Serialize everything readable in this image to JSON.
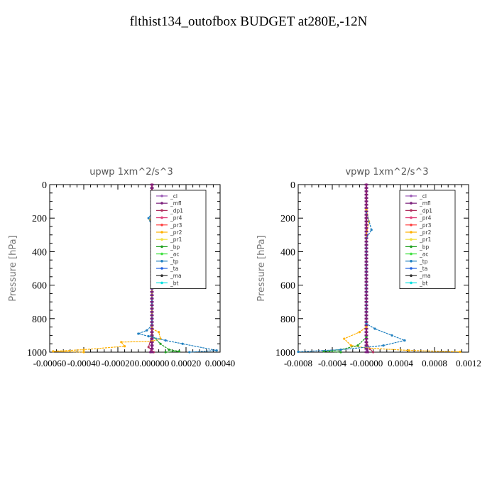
{
  "title": "flthist134_outofbox  BUDGET at280E,-12N",
  "legend_entries": [
    "_cl",
    "_mfl",
    "_dp1",
    "_pr4",
    "_pr3",
    "_pr2",
    "_pr1",
    "_bp",
    "_ac",
    "_tp",
    "_ta",
    "_ma",
    "_bt"
  ],
  "legend_colors": [
    "#9b59b6",
    "#7b1f7b",
    "#b03060",
    "#e0407a",
    "#ff4040",
    "#ffb000",
    "#f0e040",
    "#20a020",
    "#40e040",
    "#2080c0",
    "#2060e0",
    "#303030",
    "#00e0e0"
  ],
  "chart_data": [
    {
      "type": "line",
      "title": "upwp   1xm^2/s^3",
      "ylabel": "Pressure [hPa]",
      "ylim": [
        1000,
        0
      ],
      "xlim": [
        -0.0006,
        0.0004
      ],
      "y_ticks": [
        0,
        200,
        400,
        600,
        800,
        1000
      ],
      "y_tick_labels": [
        "0",
        "200",
        "400",
        "600",
        "800",
        "1000"
      ],
      "x_tick_labels": [
        "-0.00060",
        "-0.00040",
        "-0.00020",
        "0.000000",
        "0.00020",
        "0.00040"
      ],
      "legend_position": "top-right",
      "series": [
        {
          "name": "_cl",
          "color": "#9b59b6",
          "points": [
            [
              0.0,
              0
            ],
            [
              0.0,
              500
            ],
            [
              0.0,
              1000
            ]
          ]
        },
        {
          "name": "_mfl",
          "color": "#7b1f7b",
          "points": [
            [
              0.0,
              0
            ],
            [
              0.0,
              980
            ],
            [
              -1e-05,
              1000
            ]
          ]
        },
        {
          "name": "_dp1",
          "color": "#b03060",
          "points": [
            [
              0.0,
              0
            ],
            [
              0.0,
              900
            ],
            [
              -2e-05,
              970
            ],
            [
              1e-05,
              1000
            ]
          ]
        },
        {
          "name": "_pr2",
          "color": "#ffb000",
          "points": [
            [
              0.0,
              170
            ],
            [
              -1e-05,
              210
            ],
            [
              0.0,
              250
            ],
            [
              0.0,
              860
            ],
            [
              4e-05,
              880
            ],
            [
              5e-05,
              920
            ],
            [
              0.0,
              935
            ],
            [
              -0.00018,
              940
            ],
            [
              -0.00016,
              965
            ],
            [
              -0.0004,
              985
            ],
            [
              -0.00058,
              995
            ],
            [
              -0.0004,
              1000
            ]
          ]
        },
        {
          "name": "_bp",
          "color": "#20a020",
          "points": [
            [
              0.0,
              900
            ],
            [
              5e-05,
              950
            ],
            [
              0.0001,
              985
            ],
            [
              0.00016,
              995
            ],
            [
              8e-05,
              1000
            ]
          ]
        },
        {
          "name": "_tp",
          "color": "#2080c0",
          "points": [
            [
              0.0,
              170
            ],
            [
              -2e-05,
              200
            ],
            [
              0.0,
              250
            ],
            [
              0.0,
              840
            ],
            [
              -3e-05,
              870
            ],
            [
              -8e-05,
              890
            ],
            [
              -2e-05,
              905
            ],
            [
              8e-05,
              930
            ],
            [
              0.00018,
              950
            ],
            [
              0.00038,
              990
            ],
            [
              0.00022,
              1000
            ]
          ]
        }
      ]
    },
    {
      "type": "line",
      "title": "vpwp   1xm^2/s^3",
      "ylabel": "Pressure [hPa]",
      "ylim": [
        1000,
        0
      ],
      "xlim": [
        -0.0008,
        0.0012
      ],
      "y_ticks": [
        0,
        200,
        400,
        600,
        800,
        1000
      ],
      "y_tick_labels": [
        "0",
        "200",
        "400",
        "600",
        "800",
        "1000"
      ],
      "x_tick_labels": [
        "-0.0008",
        "-0.0004",
        "-0.00000",
        "0.0004",
        "0.0008",
        "0.0012"
      ],
      "legend_position": "top-right",
      "series": [
        {
          "name": "_cl",
          "color": "#9b59b6",
          "points": [
            [
              0.0,
              0
            ],
            [
              0.0,
              500
            ],
            [
              0.0,
              1000
            ]
          ]
        },
        {
          "name": "_mfl",
          "color": "#7b1f7b",
          "points": [
            [
              0.0,
              0
            ],
            [
              0.0,
              970
            ],
            [
              2e-05,
              1000
            ]
          ]
        },
        {
          "name": "_dp1",
          "color": "#b03060",
          "points": [
            [
              0.0,
              0
            ],
            [
              0.0,
              940
            ],
            [
              4e-05,
              980
            ],
            [
              8e-05,
              1000
            ]
          ]
        },
        {
          "name": "_pr2",
          "color": "#ffb000",
          "points": [
            [
              0.0,
              150
            ],
            [
              3e-05,
              220
            ],
            [
              0.0,
              300
            ],
            [
              0.0,
              850
            ],
            [
              -8e-05,
              880
            ],
            [
              -0.00026,
              920
            ],
            [
              -0.00018,
              960
            ],
            [
              0.0,
              975
            ],
            [
              0.0005,
              990
            ],
            [
              0.0011,
              998
            ]
          ]
        },
        {
          "name": "_bp",
          "color": "#20a020",
          "points": [
            [
              0.0,
              910
            ],
            [
              -0.0001,
              960
            ],
            [
              -0.0003,
              985
            ],
            [
              -0.0005,
              995
            ],
            [
              -0.0003,
              1000
            ]
          ]
        },
        {
          "name": "_tp",
          "color": "#2080c0",
          "points": [
            [
              0.0,
              160
            ],
            [
              6e-05,
              270
            ],
            [
              0.0,
              320
            ],
            [
              0.0,
              830
            ],
            [
              0.0001,
              860
            ],
            [
              0.0003,
              900
            ],
            [
              0.00045,
              930
            ],
            [
              0.0002,
              960
            ],
            [
              -0.0003,
              985
            ],
            [
              -0.0008,
              998
            ]
          ]
        }
      ]
    }
  ]
}
